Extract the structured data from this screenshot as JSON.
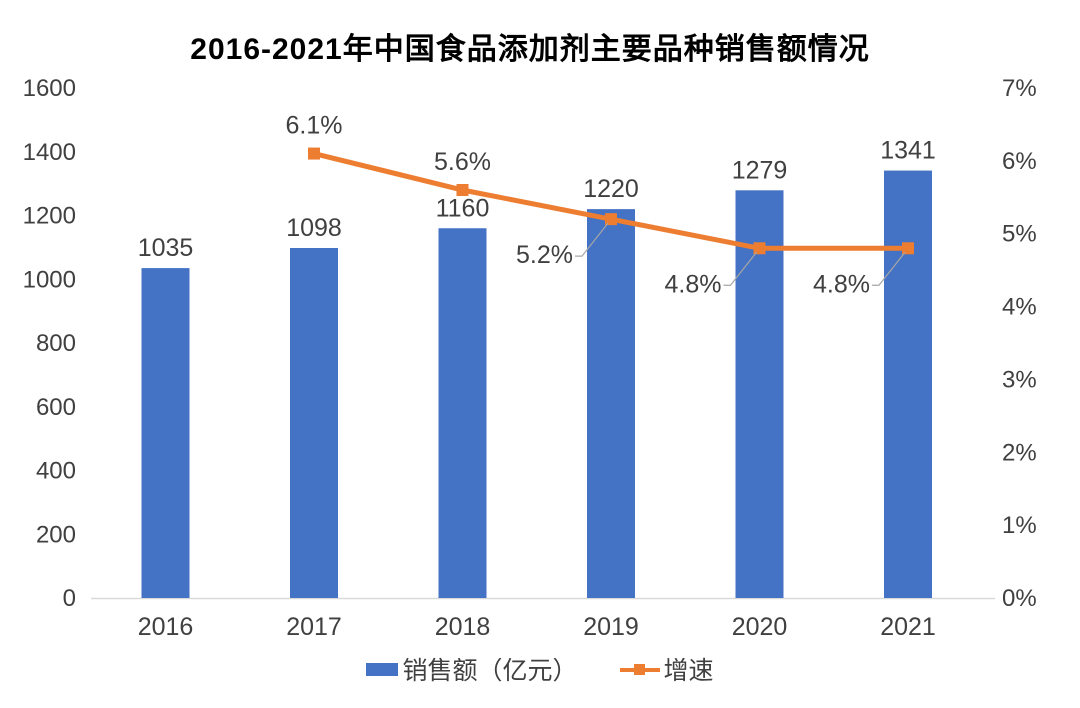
{
  "title": "2016-2021年中国食品添加剂主要品种销售额情况",
  "chart_data": {
    "type": "combo-bar-line",
    "title": "2016-2021年中国食品添加剂主要品种销售额情况",
    "categories": [
      "2016",
      "2017",
      "2018",
      "2019",
      "2020",
      "2021"
    ],
    "series": [
      {
        "name": "销售额（亿元）",
        "type": "bar",
        "axis": "left",
        "color": "#4472C4",
        "values": [
          1035,
          1098,
          1160,
          1220,
          1279,
          1341
        ],
        "labels": [
          "1035",
          "1098",
          "1160",
          "1220",
          "1279",
          "1341"
        ]
      },
      {
        "name": "增速",
        "type": "line",
        "axis": "right",
        "color": "#ED7D31",
        "values": [
          null,
          6.1,
          5.6,
          5.2,
          4.8,
          4.8
        ],
        "labels": [
          "",
          "6.1%",
          "5.6%",
          "5.2%",
          "4.8%",
          "4.8%"
        ],
        "label_placement": [
          "",
          "above",
          "above",
          "callout",
          "callout",
          "callout"
        ]
      }
    ],
    "left_axis": {
      "min": 0,
      "max": 1600,
      "step": 200,
      "ticks": [
        "0",
        "200",
        "400",
        "600",
        "800",
        "1000",
        "1200",
        "1400",
        "1600"
      ]
    },
    "right_axis": {
      "min": 0,
      "max": 7,
      "step": 1,
      "ticks": [
        "0%",
        "1%",
        "2%",
        "3%",
        "4%",
        "5%",
        "6%",
        "7%"
      ]
    },
    "legend": [
      "销售额（亿元）",
      "增速"
    ],
    "legend_position": "bottom",
    "grid": false,
    "colors": {
      "bar": "#4472C4",
      "line": "#ED7D31",
      "label_text": "#404040",
      "axis_line": "#D9D9D9",
      "leader_line": "#A6A6A6",
      "title_text": "#000000"
    }
  }
}
